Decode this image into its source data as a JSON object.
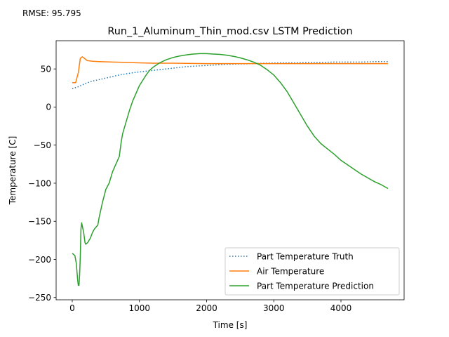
{
  "annotation": "RMSE: 95.795",
  "chart_data": {
    "type": "line",
    "title": "Run_1_Aluminum_Thin_mod.csv LSTM Prediction",
    "xlabel": "Time [s]",
    "ylabel": "Temperature [C]",
    "xlim": [
      -240,
      4940
    ],
    "ylim": [
      -253,
      87
    ],
    "xticks": [
      0,
      1000,
      2000,
      3000,
      4000
    ],
    "xtick_labels": [
      "0",
      "1000",
      "2000",
      "3000",
      "4000"
    ],
    "yticks": [
      -250,
      -200,
      -150,
      -100,
      -50,
      0,
      50
    ],
    "ytick_labels": [
      "−250",
      "−200",
      "−150",
      "−100",
      "−50",
      "0",
      "50"
    ],
    "grid": false,
    "legend_position": "lower-right",
    "series": [
      {
        "name": "Part Temperature Truth",
        "color": "#1f77b4",
        "style": "dotted",
        "x": [
          0,
          100,
          200,
          300,
          400,
          500,
          700,
          900,
          1100,
          1300,
          1500,
          1700,
          1900,
          2100,
          2300,
          2500,
          2700,
          2900,
          3100,
          3300,
          3500,
          3700,
          3900,
          4100,
          4300,
          4500,
          4700
        ],
        "y": [
          24,
          27,
          31,
          34,
          36,
          38,
          42,
          45,
          47,
          49,
          51,
          53,
          54,
          55,
          56,
          56.5,
          57,
          57.5,
          58,
          58,
          58.5,
          58.5,
          59,
          59,
          59,
          59.5,
          59.5
        ]
      },
      {
        "name": "Air Temperature",
        "color": "#ff7f0e",
        "style": "solid",
        "x": [
          0,
          50,
          90,
          120,
          150,
          180,
          220,
          300,
          400,
          600,
          800,
          1000,
          1200,
          1500,
          2000,
          2500,
          3000,
          3500,
          4000,
          4500,
          4700
        ],
        "y": [
          32,
          32,
          45,
          64,
          66,
          64,
          61,
          60,
          59.5,
          59,
          58.5,
          58,
          57.5,
          57.5,
          57,
          57,
          57,
          57,
          57,
          57,
          57
        ]
      },
      {
        "name": "Part Temperature Prediction",
        "color": "#2ca02c",
        "style": "solid",
        "x": [
          0,
          40,
          60,
          80,
          90,
          100,
          110,
          120,
          130,
          140,
          170,
          190,
          200,
          230,
          270,
          300,
          330,
          380,
          400,
          450,
          500,
          550,
          600,
          650,
          700,
          730,
          750,
          800,
          850,
          900,
          950,
          1000,
          1050,
          1100,
          1150,
          1200,
          1300,
          1400,
          1500,
          1600,
          1700,
          1800,
          1900,
          2000,
          2100,
          2200,
          2300,
          2400,
          2500,
          2600,
          2700,
          2800,
          2900,
          3000,
          3100,
          3200,
          3300,
          3400,
          3500,
          3600,
          3700,
          3800,
          3900,
          4000,
          4100,
          4200,
          4300,
          4400,
          4500,
          4600,
          4700
        ],
        "y": [
          -192,
          -195,
          -205,
          -226,
          -234,
          -234,
          -220,
          -195,
          -160,
          -152,
          -165,
          -178,
          -180,
          -178,
          -172,
          -165,
          -160,
          -155,
          -145,
          -125,
          -108,
          -100,
          -85,
          -75,
          -65,
          -45,
          -35,
          -20,
          -5,
          8,
          18,
          28,
          35,
          42,
          48,
          52,
          58,
          62,
          65,
          67,
          68.5,
          69.5,
          70,
          70,
          69.5,
          69,
          68,
          66.5,
          64.5,
          62,
          59,
          55,
          49,
          42,
          32,
          20,
          5,
          -10,
          -25,
          -38,
          -48,
          -55,
          -62,
          -70,
          -76,
          -82,
          -88,
          -93,
          -98,
          -102,
          -107
        ]
      }
    ]
  }
}
